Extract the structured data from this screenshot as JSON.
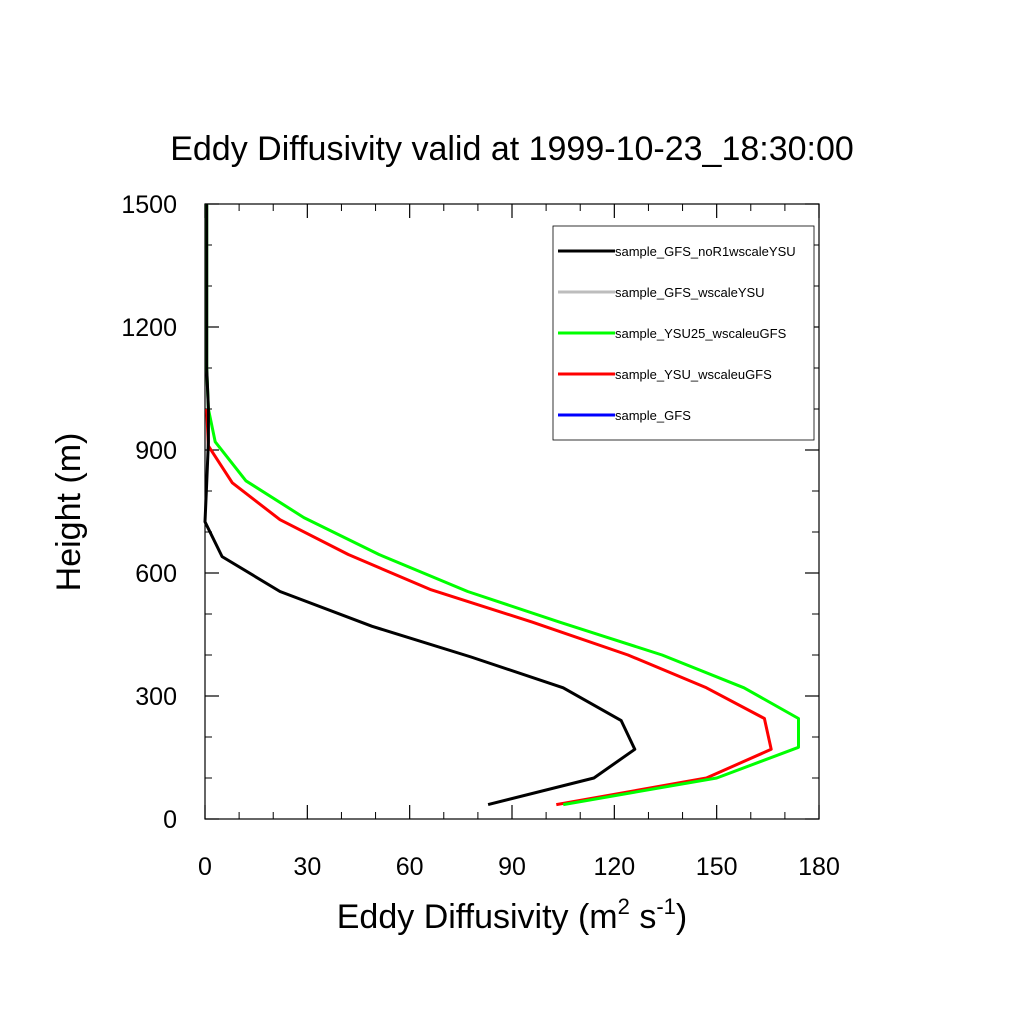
{
  "chart_data": {
    "type": "line",
    "title": "Eddy Diffusivity valid at 1999-10-23_18:30:00",
    "xlabel": {
      "base": "Eddy Diffusivity (m",
      "sup1": "2",
      "mid": " s",
      "sup2": "-1",
      "end": ")"
    },
    "ylabel": "Height (m)",
    "xlim": [
      0,
      180
    ],
    "ylim": [
      0,
      1500
    ],
    "xticks": [
      0,
      30,
      60,
      90,
      120,
      150,
      180
    ],
    "yticks": [
      0,
      300,
      600,
      900,
      1200,
      1500
    ],
    "legend_position": "top-right",
    "series": [
      {
        "name": "sample_GFS_noR1wscaleYSU",
        "color": "#000000",
        "points": [
          [
            83,
            35
          ],
          [
            114,
            100
          ],
          [
            126,
            170
          ],
          [
            122,
            240
          ],
          [
            105,
            320
          ],
          [
            78,
            395
          ],
          [
            49,
            470
          ],
          [
            22,
            555
          ],
          [
            5,
            640
          ],
          [
            0,
            725
          ],
          [
            0.5,
            820
          ],
          [
            1,
            920
          ],
          [
            1,
            1000
          ],
          [
            0.5,
            1100
          ],
          [
            0.5,
            1200
          ],
          [
            0.5,
            1300
          ],
          [
            0.5,
            1400
          ],
          [
            0.5,
            1500
          ]
        ]
      },
      {
        "name": "sample_GFS_wscaleYSU",
        "color": "#bdbdbd",
        "points": []
      },
      {
        "name": "sample_YSU25_wscaleuGFS",
        "color": "#00ff00",
        "points": [
          [
            105,
            35
          ],
          [
            150,
            100
          ],
          [
            174,
            175
          ],
          [
            174,
            245
          ],
          [
            158,
            320
          ],
          [
            134,
            400
          ],
          [
            104,
            480
          ],
          [
            77,
            555
          ],
          [
            51,
            645
          ],
          [
            29,
            735
          ],
          [
            12,
            825
          ],
          [
            3,
            920
          ],
          [
            1,
            1000
          ],
          [
            0.5,
            1100
          ],
          [
            0.5,
            1200
          ],
          [
            0.5,
            1300
          ],
          [
            0.5,
            1400
          ],
          [
            0.5,
            1500
          ]
        ]
      },
      {
        "name": "sample_YSU_wscaleuGFS",
        "color": "#ff0000",
        "points": [
          [
            103,
            35
          ],
          [
            147,
            100
          ],
          [
            166,
            170
          ],
          [
            164,
            245
          ],
          [
            147,
            320
          ],
          [
            124,
            400
          ],
          [
            96,
            480
          ],
          [
            66,
            560
          ],
          [
            42,
            645
          ],
          [
            22,
            730
          ],
          [
            8,
            820
          ],
          [
            1,
            910
          ],
          [
            0.5,
            1000
          ]
        ]
      },
      {
        "name": "sample_GFS",
        "color": "#0000ff",
        "points": []
      }
    ]
  }
}
